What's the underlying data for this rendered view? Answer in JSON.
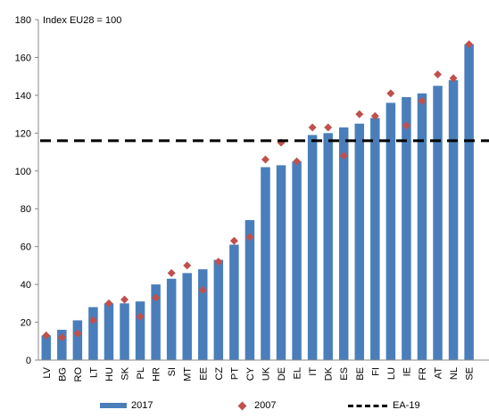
{
  "chart_data": {
    "type": "bar",
    "annotation": "Index EU28 = 100",
    "categories": [
      "LV",
      "BG",
      "RO",
      "LT",
      "HU",
      "SK",
      "PL",
      "HR",
      "SI",
      "MT",
      "EE",
      "CZ",
      "PT",
      "CY",
      "UK",
      "DE",
      "EL",
      "IT",
      "DK",
      "ES",
      "BE",
      "FI",
      "LU",
      "IE",
      "FR",
      "AT",
      "NL",
      "SE"
    ],
    "series": [
      {
        "name": "2017",
        "type": "bar",
        "color": "#4a7ebb",
        "values": [
          13,
          16,
          21,
          28,
          30,
          30,
          31,
          40,
          43,
          46,
          48,
          53,
          61,
          74,
          102,
          103,
          105,
          119,
          120,
          123,
          125,
          128,
          136,
          139,
          141,
          145,
          148,
          167
        ]
      },
      {
        "name": "2007",
        "type": "scatter",
        "marker": "diamond",
        "color": "#c0504d",
        "values": [
          13,
          12,
          14,
          21,
          30,
          32,
          23,
          33,
          46,
          50,
          37,
          52,
          63,
          65,
          106,
          115,
          105,
          123,
          123,
          108,
          130,
          129,
          141,
          124,
          137,
          151,
          149,
          167
        ]
      },
      {
        "name": "EA-19",
        "type": "line",
        "style": "dashed",
        "color": "#000000",
        "value": 116
      }
    ],
    "ylim": [
      0,
      180
    ],
    "yticks": [
      0,
      20,
      40,
      60,
      80,
      100,
      120,
      140,
      160,
      180
    ],
    "legend_position": "bottom",
    "grid": false
  }
}
